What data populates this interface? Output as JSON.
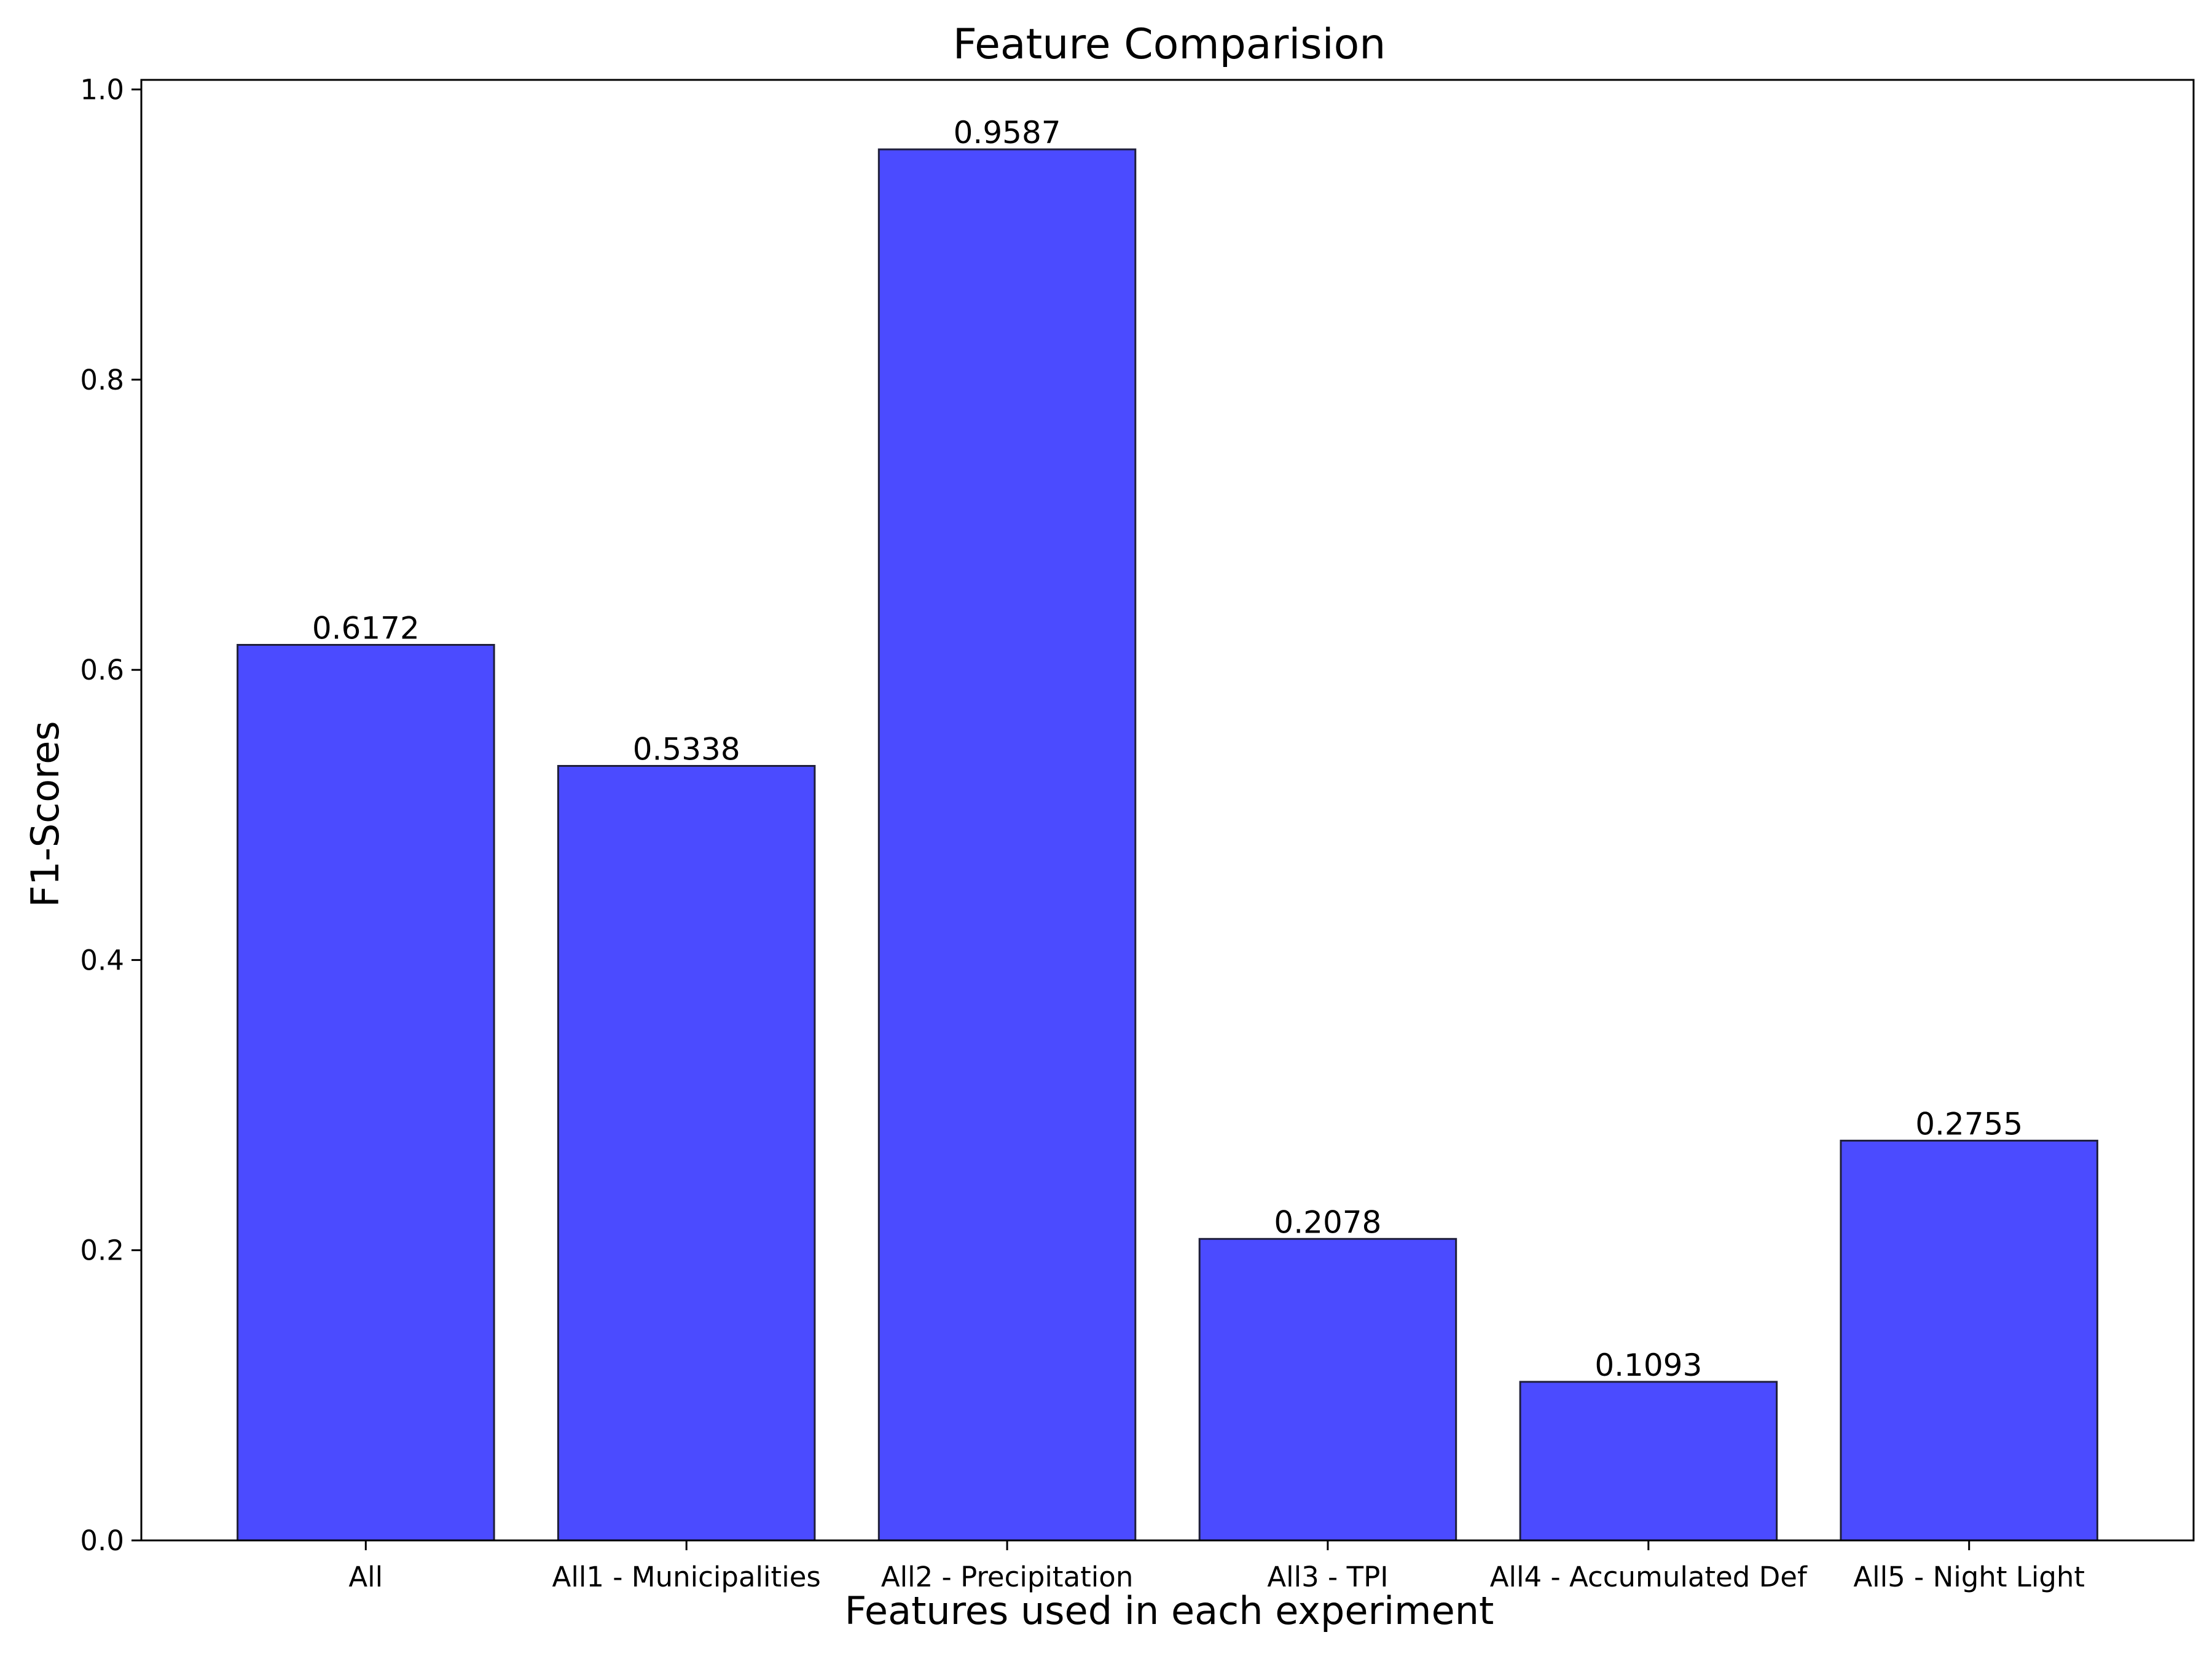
{
  "chart_data": {
    "type": "bar",
    "title": "Feature Comparision",
    "xlabel": "Features used in each experiment",
    "ylabel": "F1-Scores",
    "categories": [
      "All",
      "All1 - Municipalities",
      "All2 - Precipitation",
      "All3 - TPI",
      "All4 - Accumulated Def",
      "All5 - Night Light"
    ],
    "values": [
      0.6172,
      0.5338,
      0.9587,
      0.2078,
      0.1093,
      0.2755
    ],
    "value_labels": [
      "0.6172",
      "0.5338",
      "0.9587",
      "0.2078",
      "0.1093",
      "0.2755"
    ],
    "ylim": [
      0,
      1.0066
    ],
    "yticks": [
      0.0,
      0.2,
      0.4,
      0.6,
      0.8,
      1.0
    ],
    "ytick_labels": [
      "0.0",
      "0.2",
      "0.4",
      "0.6",
      "0.8",
      "1.0"
    ],
    "bar_color": "#4b4bff",
    "bar_edge_color": "#1f1f3a",
    "grid": false,
    "legend": "none"
  }
}
